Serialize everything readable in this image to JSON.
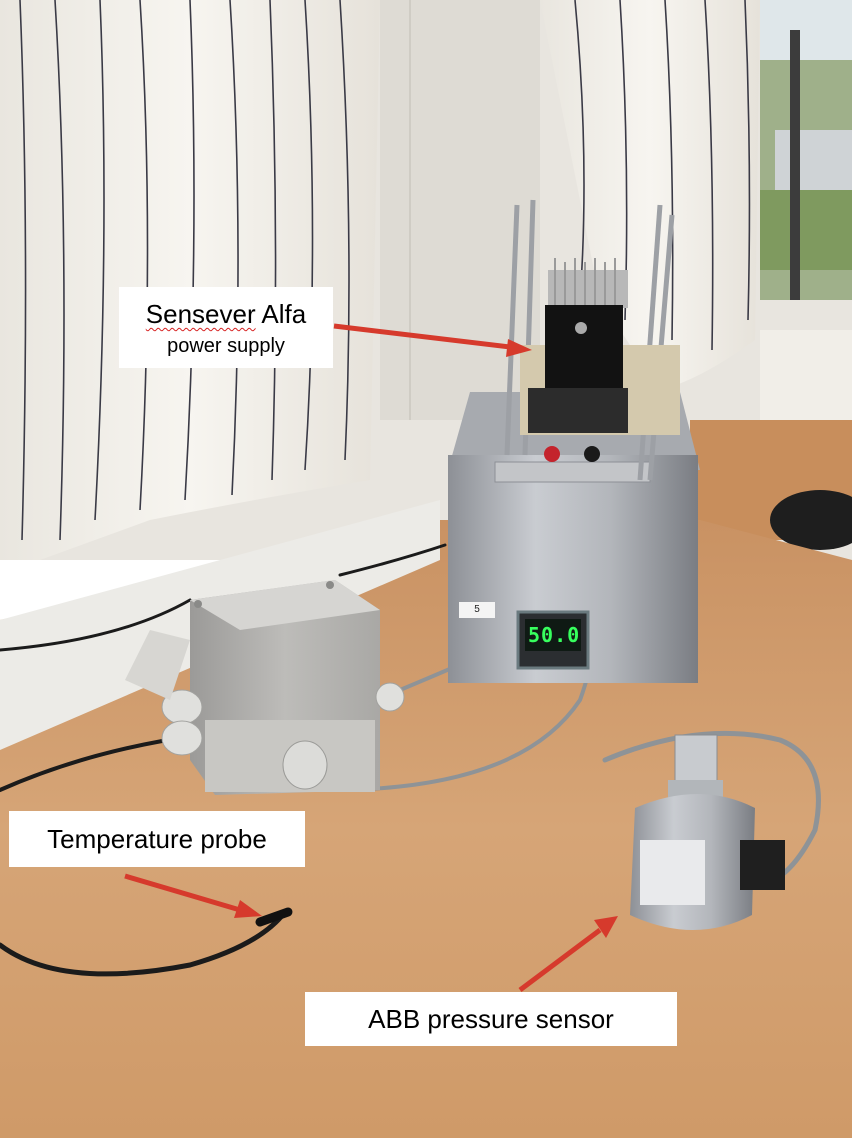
{
  "annotations": {
    "alfa_word1": "Sensever",
    "alfa_word2": "Alfa",
    "alfa_line2": "power supply",
    "temperature": "Temperature probe",
    "pressure": "ABB pressure sensor"
  },
  "display": {
    "reading": "50.0"
  },
  "tag": {
    "number": "5"
  },
  "colors": {
    "arrow": "#d63a2c",
    "display_text": "#37ff5e",
    "table": "#d9a06c"
  }
}
